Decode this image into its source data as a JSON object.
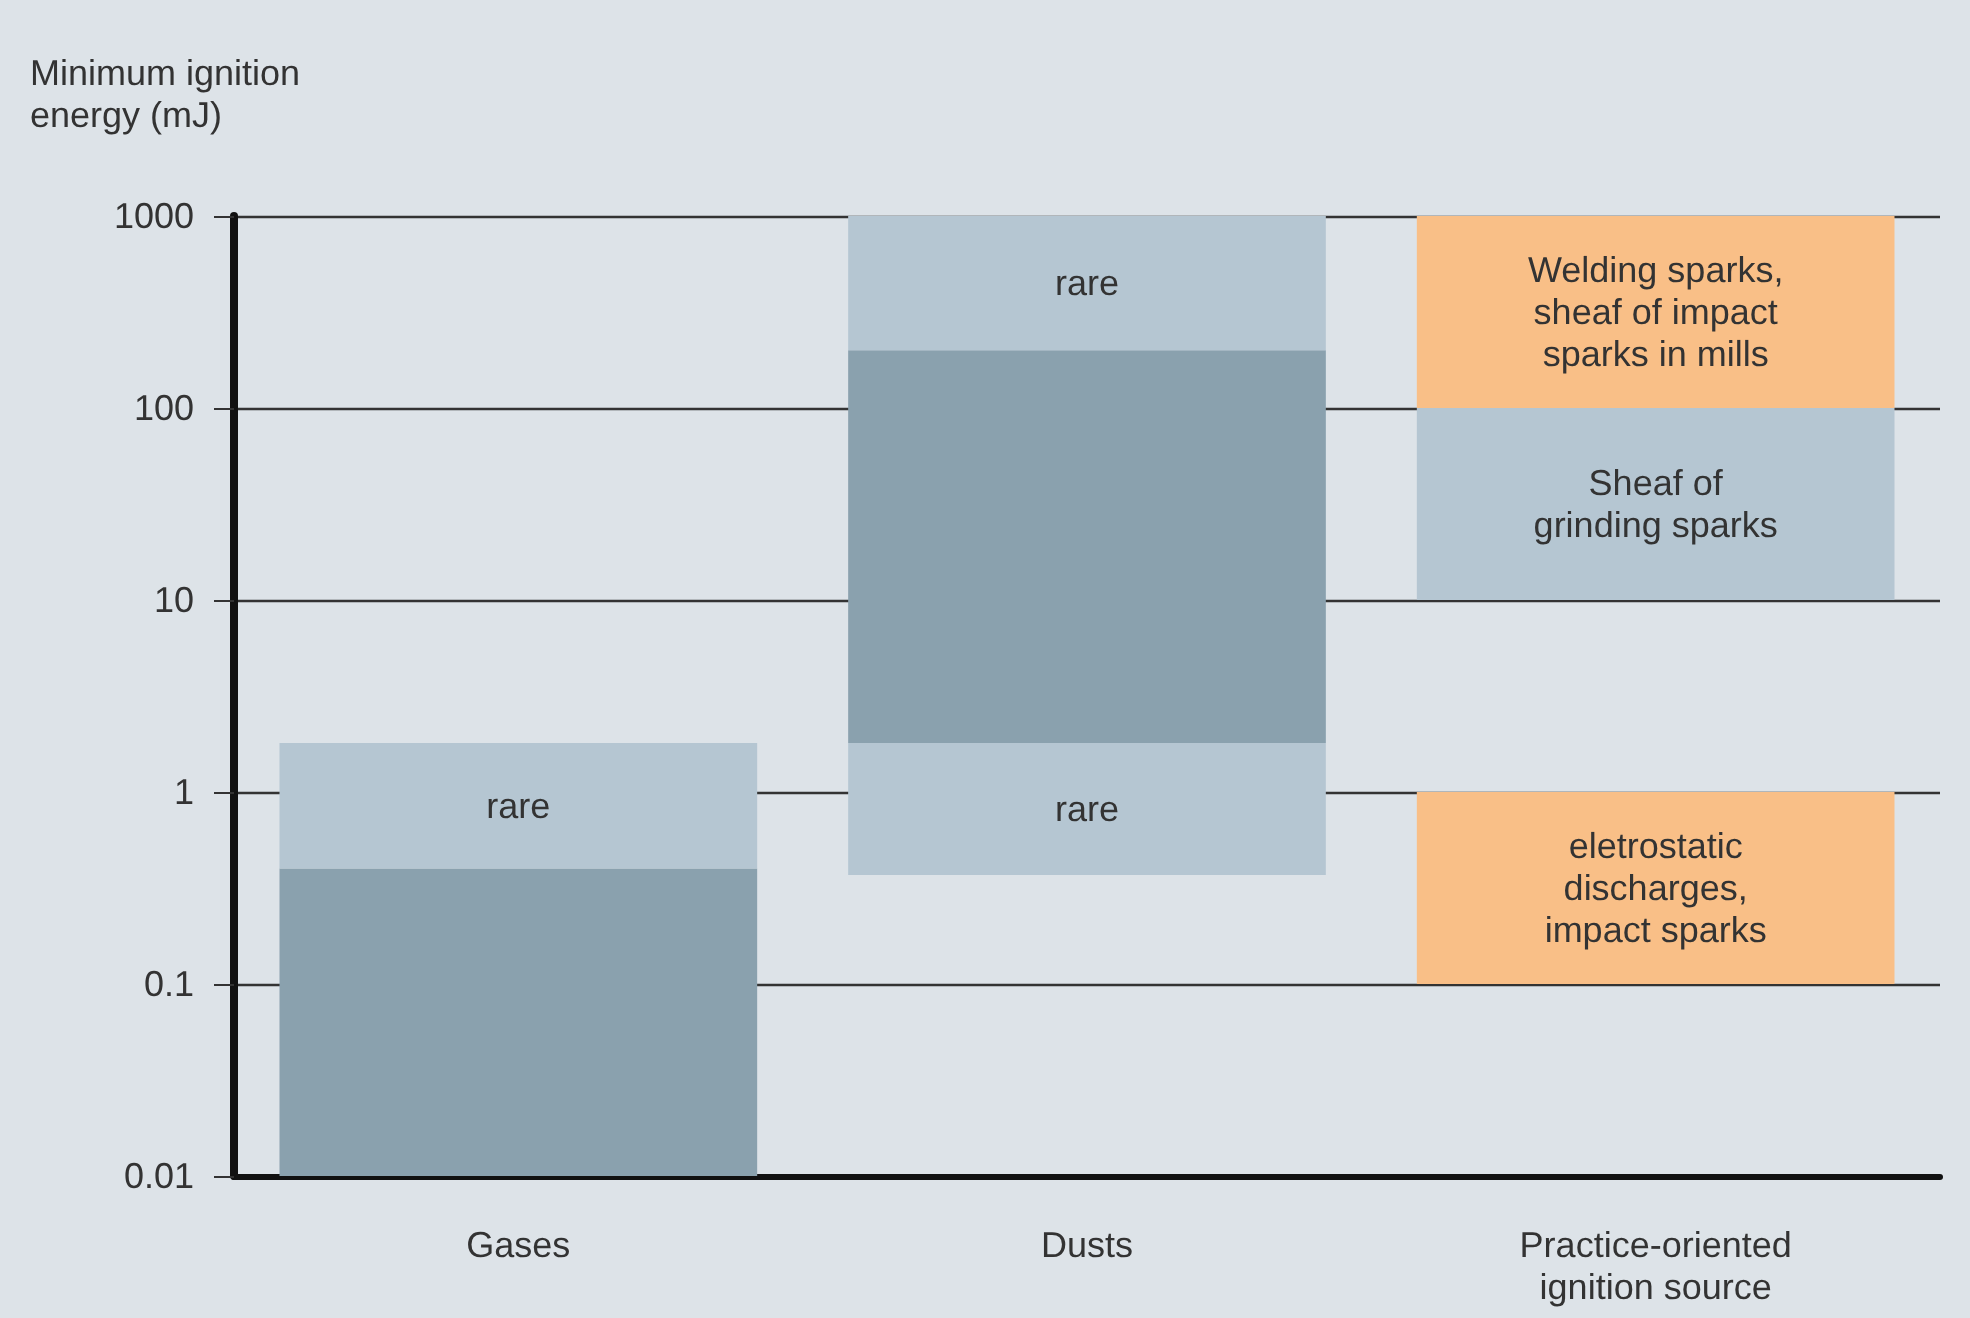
{
  "chart_data": {
    "type": "bar",
    "ylabel": "Minimum ignition\nenergy (mJ)",
    "categories": [
      "Gases",
      "Dusts",
      "Practice-oriented\nignition source"
    ],
    "log": "y",
    "ylim": [
      0.01,
      1000
    ],
    "yticks": [
      0.01,
      0.1,
      1,
      10,
      100,
      1000
    ],
    "grid": "y",
    "series": [
      {
        "color": "#8aa1ae",
        "base": [
          0.01,
          1.8,
          null
        ],
        "values": [
          0.39,
          198.2,
          null
        ]
      },
      {
        "color": "#b5c6d2",
        "base": [
          0.4,
          0.37,
          10
        ],
        "values": [
          1.4,
          1.43,
          90
        ],
        "value_labels": [
          "rare",
          "rare",
          "Sheaf of\ngrinding sparks"
        ]
      },
      {
        "color": "#b5c6d2",
        "base": [
          null,
          200,
          null
        ],
        "values": [
          null,
          800,
          null
        ],
        "value_labels": [
          null,
          "rare",
          null
        ]
      },
      {
        "color": "#f9bf87",
        "base": [
          null,
          null,
          0.1
        ],
        "values": [
          null,
          null,
          0.9
        ],
        "value_labels": [
          null,
          null,
          "eletrostatic\ndischarges,\nimpact sparks"
        ]
      },
      {
        "color": "#f9bf87",
        "base": [
          null,
          null,
          100
        ],
        "values": [
          null,
          null,
          900
        ],
        "value_labels": [
          null,
          null,
          "Welding sparks,\nsheaf of impact\nsparks in mills"
        ]
      }
    ]
  }
}
